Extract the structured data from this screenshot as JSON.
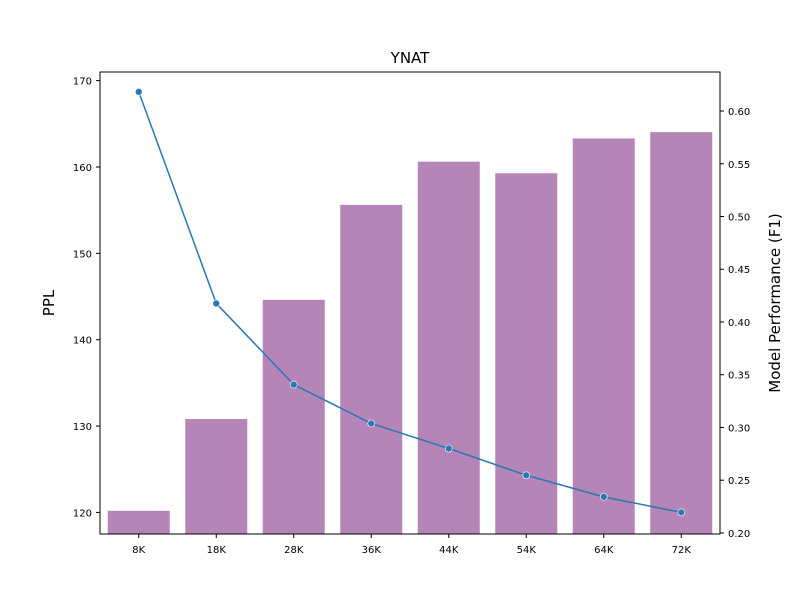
{
  "chart_data": {
    "type": "bar",
    "title": "YNAT",
    "xlabel": "",
    "ylabel": "PPL",
    "y2label": "Model Performance (F1)",
    "categories": [
      "8K",
      "18K",
      "28K",
      "36K",
      "44K",
      "54K",
      "64K",
      "72K"
    ],
    "bar_series": {
      "axis": "right",
      "values": [
        0.221,
        0.308,
        0.421,
        0.511,
        0.552,
        0.541,
        0.574,
        0.58
      ],
      "color": "#b685b7"
    },
    "line_series": {
      "axis": "left",
      "values": [
        168.7,
        144.2,
        134.8,
        130.3,
        127.4,
        124.3,
        121.8,
        120.0
      ],
      "color": "#2878b5",
      "marker": "circle"
    },
    "ylim": [
      117.5,
      171.0
    ],
    "y2lim": [
      0.199,
      0.637
    ],
    "yticks": [
      120,
      130,
      140,
      150,
      160,
      170
    ],
    "y2ticks": [
      "0.20",
      "0.25",
      "0.30",
      "0.35",
      "0.40",
      "0.45",
      "0.50",
      "0.55",
      "0.60"
    ],
    "grid": false
  }
}
